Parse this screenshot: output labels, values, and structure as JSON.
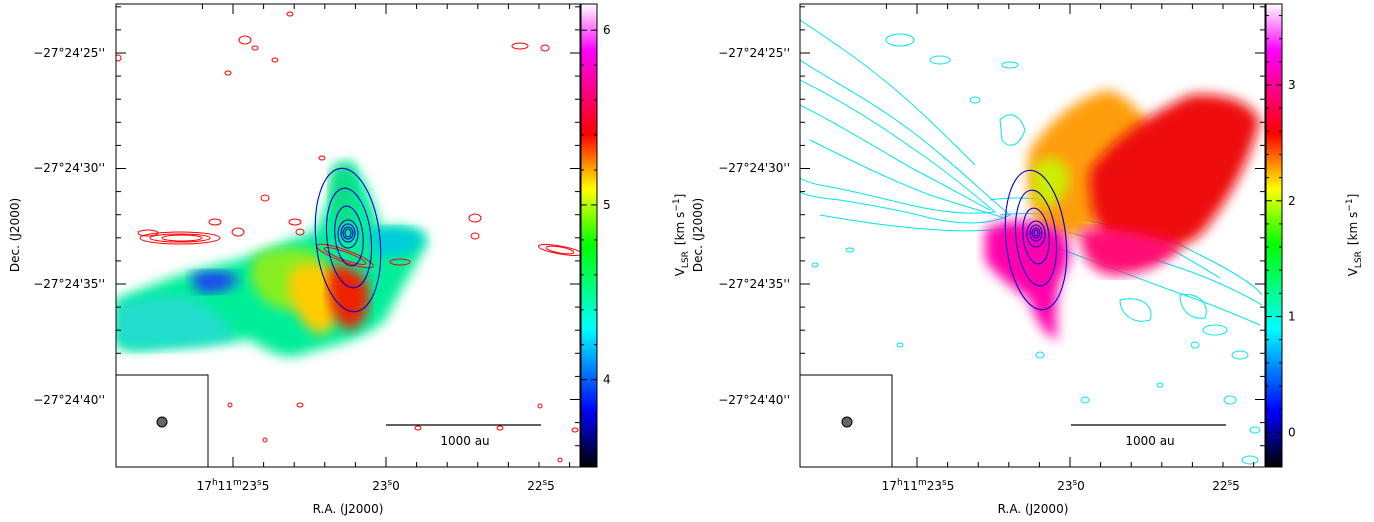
{
  "chart_data": [
    {
      "type": "heatmap",
      "title": "",
      "xlabel": "R.A. (J2000)",
      "ylabel": "Dec. (J2000)",
      "x_ticks": [
        {
          "h": "17",
          "hu": "h",
          "m": "11",
          "mu": "m",
          "s": "23",
          "su": "s",
          ".5": "5",
          "label": "17h11m23s5"
        },
        {
          "s": "23",
          "su": "s",
          "frac": "0",
          "label": "23s0"
        },
        {
          "s": "22",
          "su": "s",
          "frac": "5",
          "label": "22s5"
        }
      ],
      "y_ticks": [
        "−27°24'25''",
        "−27°24'30''",
        "−27°24'35''",
        "−27°24'40''"
      ],
      "colorbar": {
        "label_main": "V",
        "label_sub": "LSR",
        "label_unit": "[km s",
        "label_exp": "−1",
        "label_close": "]",
        "ticks": [
          "4",
          "5",
          "6"
        ],
        "range": [
          3.5,
          6.15
        ],
        "colormap": [
          "#000000",
          "#0000ff",
          "#00ffff",
          "#00ff00",
          "#ffff00",
          "#ff0000",
          "#ff00ff",
          "#ffffff"
        ]
      },
      "scalebar_label": "1000 au",
      "contour_colors": {
        "outflow": "#ff0000",
        "continuum": "#0000cc"
      }
    },
    {
      "type": "heatmap",
      "title": "",
      "xlabel": "R.A. (J2000)",
      "ylabel": "Dec. (J2000)",
      "y_ticks": [
        "−27°24'25''",
        "−27°24'30''",
        "−27°24'35''",
        "−27°24'40''"
      ],
      "colorbar": {
        "label_main": "V",
        "label_sub": "LSR",
        "label_unit": "[km s",
        "label_exp": "−1",
        "label_close": "]",
        "ticks": [
          "0",
          "1",
          "2",
          "3"
        ],
        "range": [
          -0.3,
          3.7
        ],
        "colormap": [
          "#000000",
          "#0000ff",
          "#00ffff",
          "#00ff00",
          "#ffff00",
          "#ff0000",
          "#ff00ff",
          "#ffffff"
        ]
      },
      "scalebar_label": "1000 au",
      "contour_colors": {
        "outflow": "#00e5ee",
        "continuum": "#0000cc"
      }
    }
  ],
  "labels": {
    "left_ra_ticks": [
      "17",
      "h",
      "11",
      "m",
      "23",
      "s",
      "5",
      "23",
      "s",
      "0",
      "22",
      "s",
      "5"
    ],
    "right_ra_ticks": [
      "17",
      "h",
      "11",
      "m",
      "23",
      "s",
      "5",
      "23",
      "s",
      "0",
      "22",
      "s",
      "5"
    ]
  }
}
